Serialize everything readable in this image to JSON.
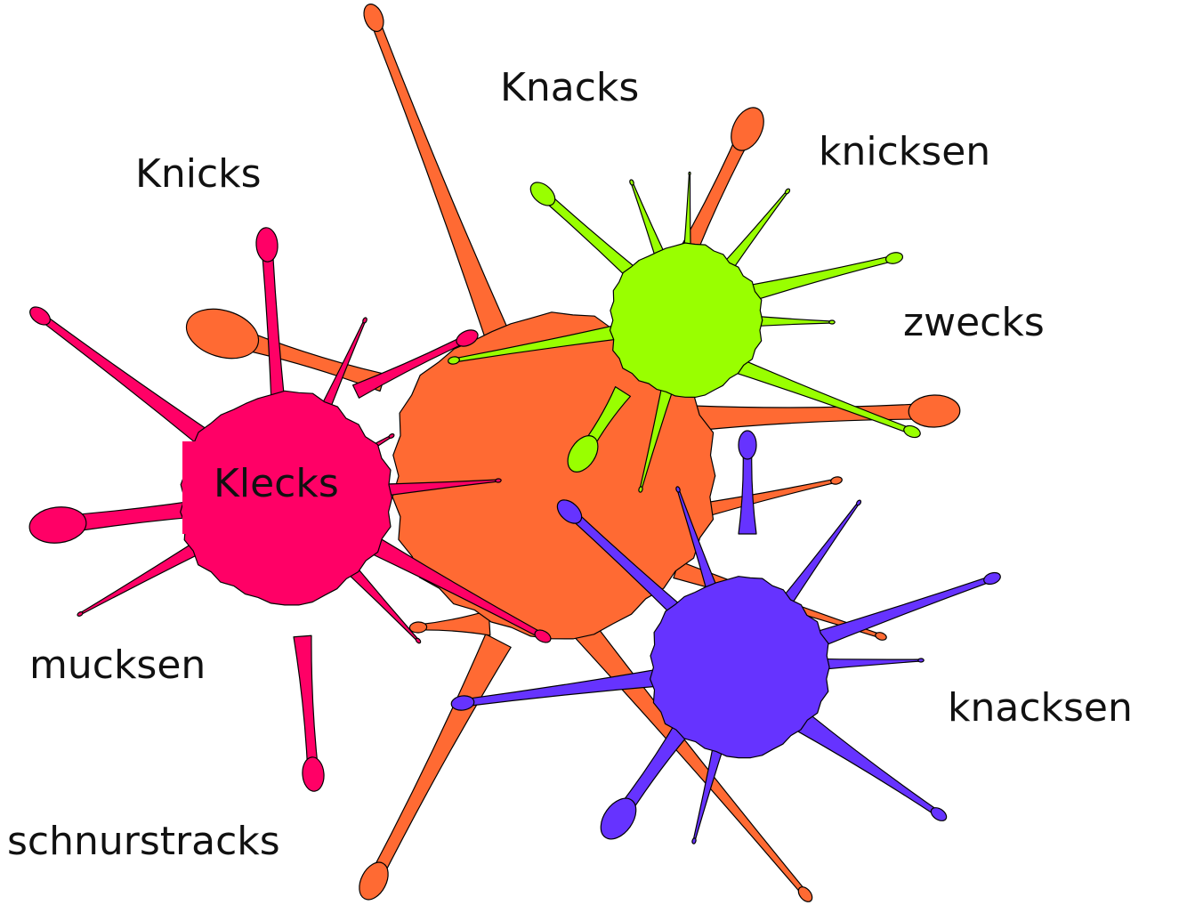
{
  "words": {
    "top": "Knacks",
    "top_right": "knicksen",
    "top_left": "Knicks",
    "right": "zwecks",
    "center": "Klecks",
    "left": "mucksen",
    "bottom_right": "knacksen",
    "bottom_left": "schnurstracks"
  }
}
